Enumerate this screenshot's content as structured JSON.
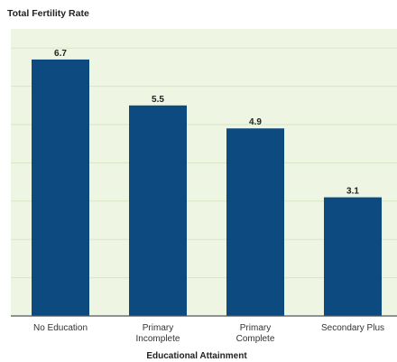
{
  "chart_data": {
    "type": "bar",
    "title": "Total Fertility Rate",
    "xlabel": "Educational Attainment",
    "ylabel": "",
    "categories": [
      [
        "No Education"
      ],
      [
        "Primary",
        "Incomplete"
      ],
      [
        "Primary",
        "Complete"
      ],
      [
        "Secondary Plus"
      ]
    ],
    "values": [
      6.7,
      5.5,
      4.9,
      3.1
    ],
    "value_labels": [
      "6.7",
      "5.5",
      "4.9",
      "3.1"
    ],
    "ylim": [
      0,
      7.5
    ],
    "grid": true,
    "legend": "none",
    "colors": {
      "bar": "#0d4a80",
      "plot_background": "#eef5e3",
      "grid": "#d7e6c3",
      "axis": "#555555"
    }
  }
}
